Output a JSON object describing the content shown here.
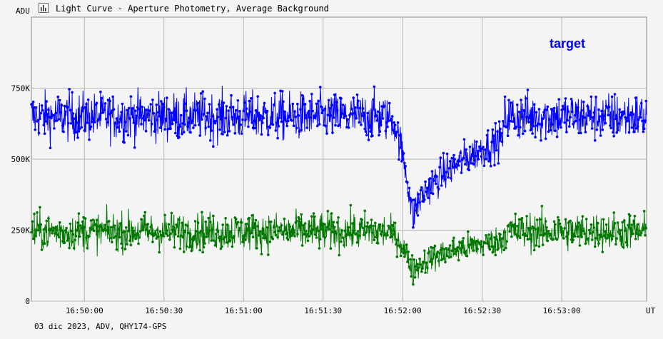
{
  "window": {
    "title": "Light Curve - Aperture Photometry, Average Background",
    "footer": "03 dic 2023, ADV, QHY174-GPS"
  },
  "icons": {
    "app": "chart-icon"
  },
  "chart_data": {
    "type": "scatter",
    "title": "Light Curve - Aperture Photometry, Average Background",
    "ylabel": "ADU",
    "xlabel": "UT",
    "x_tick_labels": [
      "16:50:00",
      "16:50:30",
      "16:51:00",
      "16:51:30",
      "16:52:00",
      "16:52:30",
      "16:53:00"
    ],
    "x_ticks_seconds": [
      60000,
      60030,
      60060,
      60090,
      60120,
      60150,
      60180
    ],
    "y_tick_labels": [
      "0",
      "250K",
      "500K",
      "750K"
    ],
    "y_ticks": [
      0,
      250000,
      500000,
      750000
    ],
    "xlim_seconds": [
      59980,
      60212
    ],
    "ylim": [
      0,
      1000000
    ],
    "grid": true,
    "legend_position": "top-right",
    "series": [
      {
        "name": "target",
        "color": "#0000ff",
        "baseline": 650000,
        "spread": 70000,
        "events": [
          {
            "description": "dip minimum",
            "t": 60124,
            "value": 280000
          },
          {
            "description": "step up to baseline",
            "t": 60158,
            "value": 650000
          }
        ]
      },
      {
        "name": "",
        "color": "#007800",
        "baseline": 245000,
        "spread": 55000,
        "events": [
          {
            "description": "dip minimum",
            "t": 60124,
            "value": 100000
          },
          {
            "description": "step up to baseline",
            "t": 60158,
            "value": 230000
          }
        ]
      }
    ]
  }
}
